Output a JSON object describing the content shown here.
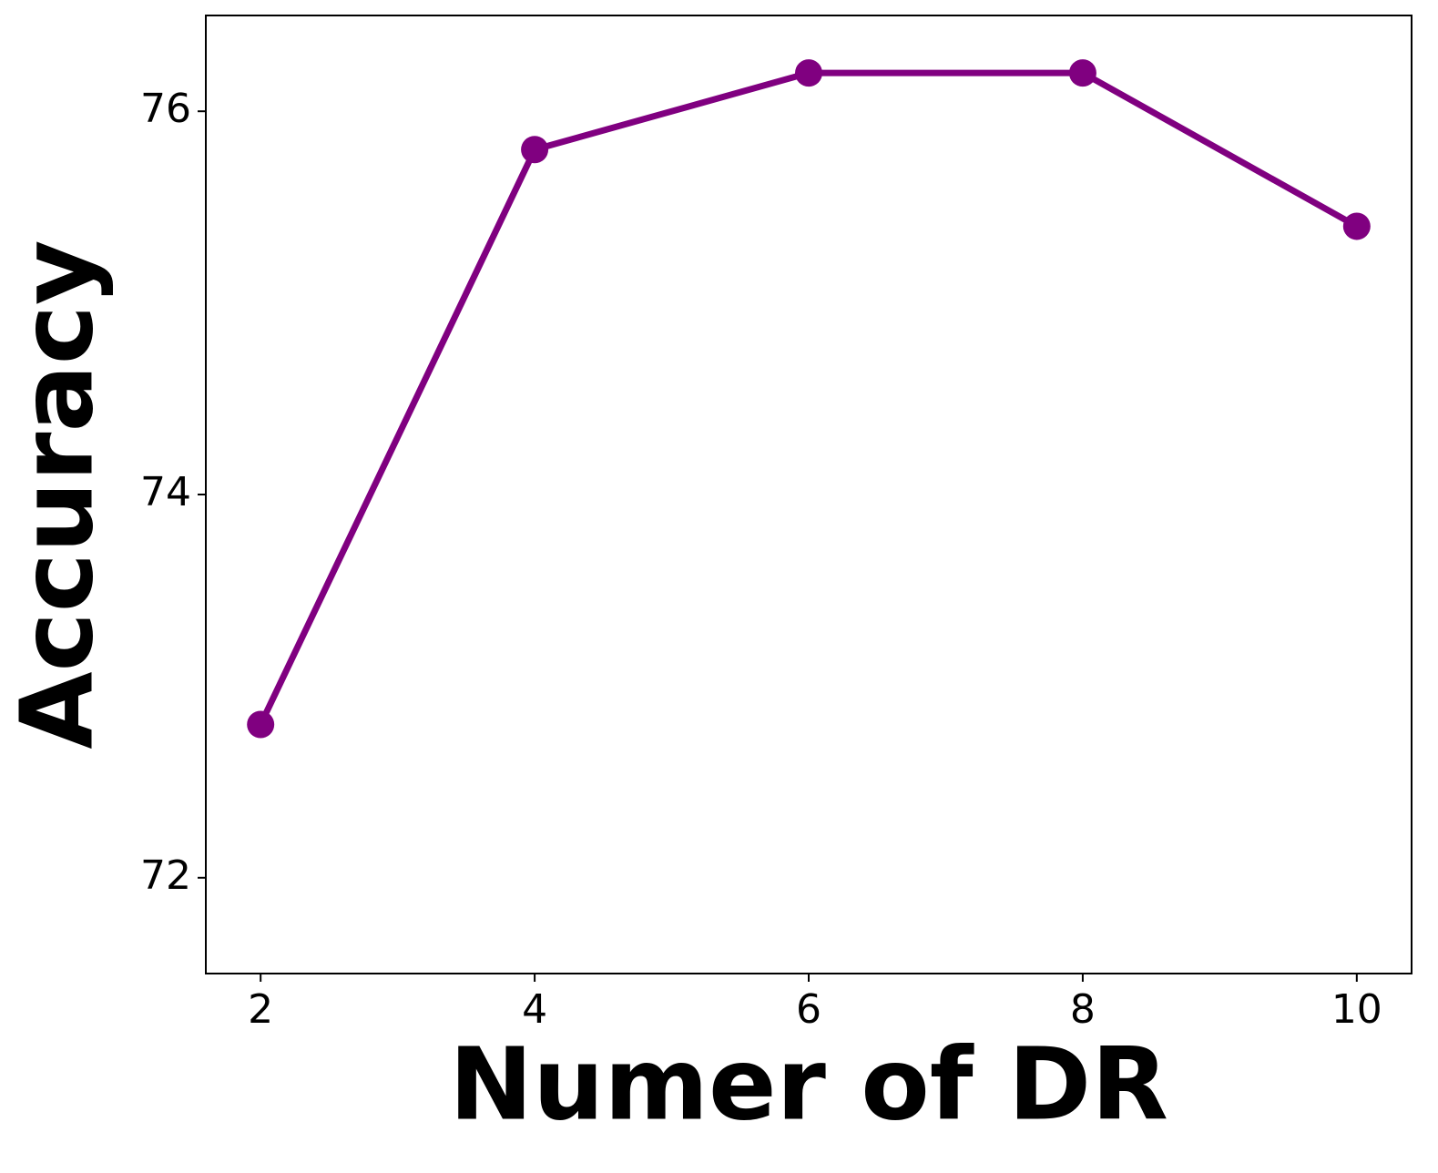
{
  "chart_data": {
    "type": "line",
    "x_label": "Numer of DR",
    "y_label": "Accuracy",
    "x": [
      2,
      4,
      6,
      8,
      10
    ],
    "series": [
      {
        "color": "#800080",
        "values": [
          72.8,
          75.8,
          76.2,
          76.2,
          75.4
        ]
      }
    ],
    "xlim": [
      1.6,
      10.4
    ],
    "xticks": [
      2,
      4,
      6,
      8,
      10
    ],
    "ylim": [
      71.5,
      76.5
    ],
    "yticks": [
      72,
      74,
      76
    ],
    "grid": false
  }
}
